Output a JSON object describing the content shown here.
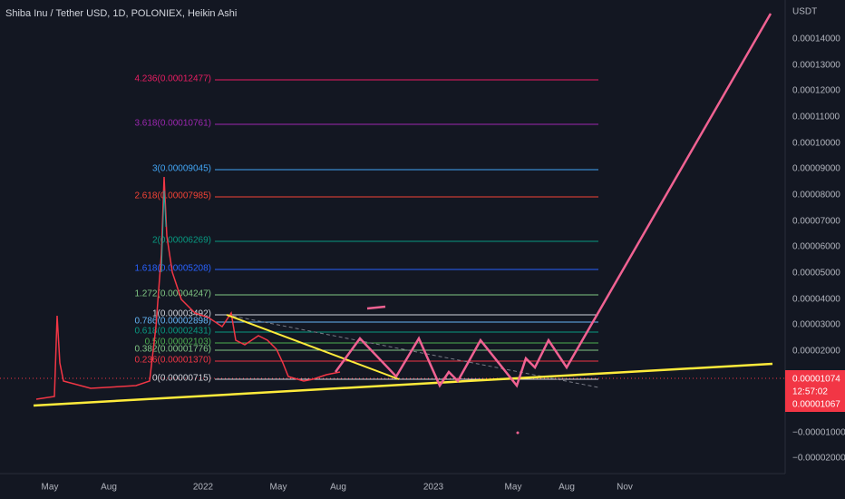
{
  "header": {
    "title": "Shiba Inu / Tether USD, 1D, POLONIEX, Heikin Ashi",
    "currency": "USDT"
  },
  "price_axis": [
    "0.00014000",
    "0.00013000",
    "0.00012000",
    "0.00011000",
    "0.00010000",
    "0.00009000",
    "0.00008000",
    "0.00007000",
    "0.00006000",
    "0.00005000",
    "0.00004000",
    "0.00003000",
    "0.00002000",
    "−0.00001000",
    "−0.00002000"
  ],
  "price_tags": [
    "0.00001074",
    "12:57:02",
    "0.00001067"
  ],
  "time_axis": [
    "May",
    "Aug",
    "2022",
    "May",
    "Aug",
    "2023",
    "May",
    "Aug",
    "Nov"
  ],
  "fib_levels": [
    "4.236(0.00012477)",
    "3.618(0.00010761)",
    "3(0.00009045)",
    "2.618(0.00007985)",
    "2(0.00006269)",
    "1.618(0.00005208)",
    "1.272(0.00004247)",
    "1(0.00003492)",
    "0.786(0.00002898)",
    "0.618(0.00002431)",
    "0.5(0.00002103)",
    "0.382(0.00001776)",
    "0.236(0.00001370)",
    "0(0.00000715)"
  ]
}
